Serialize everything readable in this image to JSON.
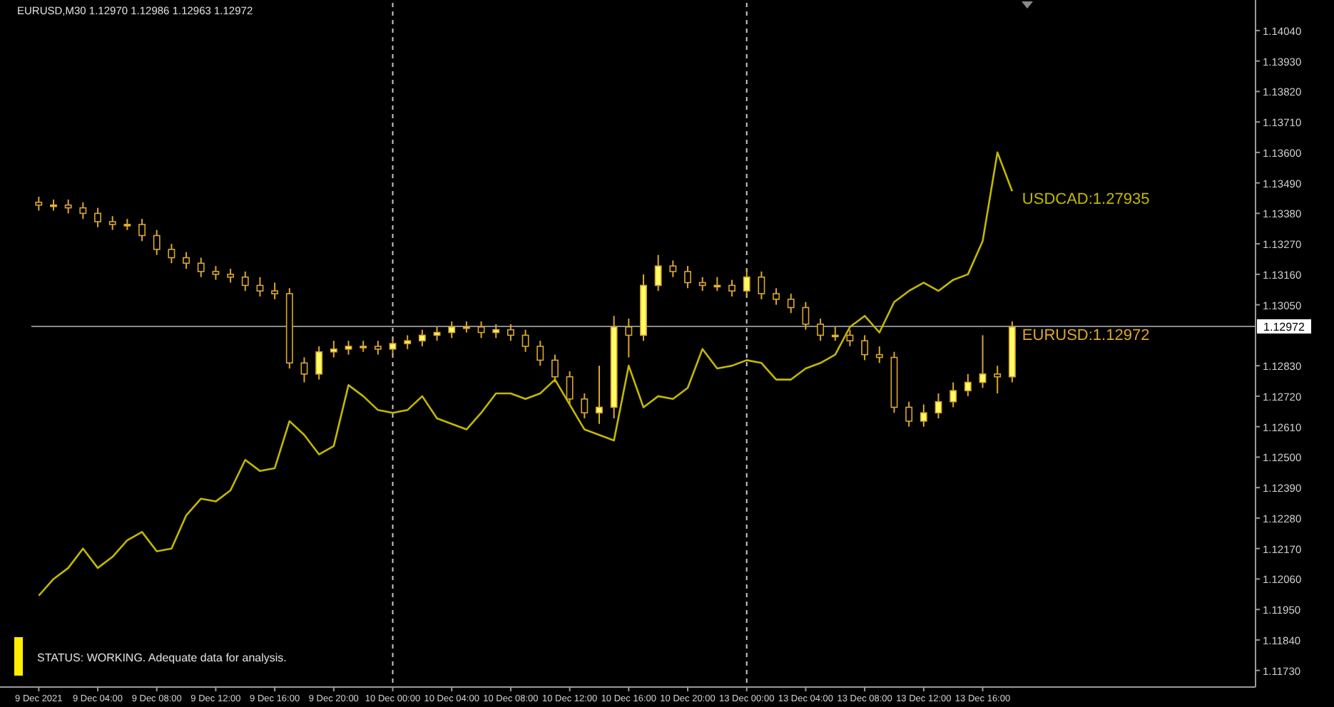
{
  "chart_data": {
    "type": "candlestick",
    "title": "EURUSD,M30  1.12970 1.12986 1.12963 1.12972",
    "annotations": [
      "STATUS: WORKING. Adequate data for analysis."
    ],
    "categories": [
      "9 Dec 2021",
      null,
      null,
      null,
      "9 Dec 04:00",
      null,
      null,
      null,
      "9 Dec 08:00",
      null,
      null,
      null,
      "9 Dec 12:00",
      null,
      null,
      null,
      "9 Dec 16:00",
      null,
      null,
      null,
      "9 Dec 20:00",
      null,
      null,
      null,
      "10 Dec 00:00",
      null,
      null,
      null,
      "10 Dec 04:00",
      null,
      null,
      null,
      "10 Dec 08:00",
      null,
      null,
      null,
      "10 Dec 12:00",
      null,
      null,
      null,
      "10 Dec 16:00",
      null,
      null,
      null,
      "10 Dec 20:00",
      null,
      null,
      null,
      "13 Dec 00:00",
      null,
      null,
      null,
      "13 Dec 04:00",
      null,
      null,
      null,
      "13 Dec 08:00",
      null,
      null,
      null,
      "13 Dec 12:00",
      null,
      null,
      null,
      "13 Dec 16:00",
      null,
      null
    ],
    "ylim": [
      1.1167,
      1.1414
    ],
    "yticks": [
      {
        "value": 1.1404,
        "label": "1.14040"
      },
      {
        "value": 1.1393,
        "label": "1.13930"
      },
      {
        "value": 1.1382,
        "label": "1.13820"
      },
      {
        "value": 1.1371,
        "label": "1.13710"
      },
      {
        "value": 1.136,
        "label": "1.13600"
      },
      {
        "value": 1.1349,
        "label": "1.13490"
      },
      {
        "value": 1.1338,
        "label": "1.13380"
      },
      {
        "value": 1.1327,
        "label": "1.13270"
      },
      {
        "value": 1.1316,
        "label": "1.13160"
      },
      {
        "value": 1.1305,
        "label": "1.13050"
      },
      {
        "value": 1.1283,
        "label": "1.12830"
      },
      {
        "value": 1.1272,
        "label": "1.12720"
      },
      {
        "value": 1.1261,
        "label": "1.12610"
      },
      {
        "value": 1.125,
        "label": "1.12500"
      },
      {
        "value": 1.1239,
        "label": "1.12390"
      },
      {
        "value": 1.1228,
        "label": "1.12280"
      },
      {
        "value": 1.1217,
        "label": "1.12170"
      },
      {
        "value": 1.1206,
        "label": "1.12060"
      },
      {
        "value": 1.1195,
        "label": "1.11950"
      },
      {
        "value": 1.1184,
        "label": "1.11840"
      },
      {
        "value": 1.1173,
        "label": "1.11730"
      }
    ],
    "grid": false,
    "ref_lines": [
      {
        "axis": "x",
        "value": "10 Dec 00:00",
        "label": null,
        "color": "#c8c8c8",
        "line_style": "dashed"
      },
      {
        "axis": "x",
        "value": "13 Dec 00:00",
        "label": null,
        "color": "#c8c8c8",
        "line_style": "dashed"
      },
      {
        "axis": "y",
        "value": 1.12972,
        "label": "1.12972",
        "color": "#8a8a8a",
        "line_style": "solid"
      }
    ],
    "series": [
      {
        "name": "EURUSD:1.12972",
        "color": "#d9a631",
        "ohlc": [
          [
            1.1342,
            1.1344,
            1.1339,
            1.1341
          ],
          [
            1.1341,
            1.1343,
            1.1339,
            1.1341
          ],
          [
            1.1341,
            1.1343,
            1.1338,
            1.134
          ],
          [
            1.134,
            1.1342,
            1.1336,
            1.1338
          ],
          [
            1.1338,
            1.134,
            1.1333,
            1.1335
          ],
          [
            1.1335,
            1.1337,
            1.1332,
            1.1334
          ],
          [
            1.1334,
            1.1336,
            1.1332,
            1.1334
          ],
          [
            1.1334,
            1.1336,
            1.1328,
            1.133
          ],
          [
            1.133,
            1.1332,
            1.1323,
            1.1325
          ],
          [
            1.1325,
            1.1327,
            1.132,
            1.1322
          ],
          [
            1.1322,
            1.1324,
            1.1318,
            1.132
          ],
          [
            1.132,
            1.1322,
            1.1315,
            1.1317
          ],
          [
            1.1317,
            1.1319,
            1.1314,
            1.1316
          ],
          [
            1.1316,
            1.1318,
            1.1313,
            1.1315
          ],
          [
            1.1315,
            1.1317,
            1.131,
            1.1312
          ],
          [
            1.1312,
            1.1315,
            1.1308,
            1.131
          ],
          [
            1.131,
            1.1313,
            1.1307,
            1.1309
          ],
          [
            1.1309,
            1.1311,
            1.1282,
            1.1284
          ],
          [
            1.1284,
            1.1286,
            1.1277,
            1.128
          ],
          [
            1.128,
            1.129,
            1.1278,
            1.1288
          ],
          [
            1.1288,
            1.1292,
            1.1286,
            1.1289
          ],
          [
            1.1289,
            1.1292,
            1.1287,
            1.129
          ],
          [
            1.129,
            1.1292,
            1.1288,
            1.129
          ],
          [
            1.129,
            1.1292,
            1.1287,
            1.1289
          ],
          [
            1.1289,
            1.1293,
            1.1287,
            1.1291
          ],
          [
            1.1291,
            1.1294,
            1.1289,
            1.1292
          ],
          [
            1.1292,
            1.1296,
            1.129,
            1.1294
          ],
          [
            1.1294,
            1.1297,
            1.1292,
            1.1295
          ],
          [
            1.1295,
            1.1299,
            1.1293,
            1.1297
          ],
          [
            1.1297,
            1.1299,
            1.1295,
            1.1297
          ],
          [
            1.1297,
            1.1299,
            1.1293,
            1.1295
          ],
          [
            1.1295,
            1.1298,
            1.1293,
            1.1296
          ],
          [
            1.1296,
            1.1298,
            1.1292,
            1.1294
          ],
          [
            1.1294,
            1.1296,
            1.1288,
            1.129
          ],
          [
            1.129,
            1.1292,
            1.1283,
            1.1285
          ],
          [
            1.1285,
            1.1287,
            1.1277,
            1.1279
          ],
          [
            1.1279,
            1.1281,
            1.1269,
            1.1271
          ],
          [
            1.1271,
            1.1273,
            1.1264,
            1.1266
          ],
          [
            1.1266,
            1.1283,
            1.1262,
            1.1268
          ],
          [
            1.1268,
            1.1301,
            1.1264,
            1.1297
          ],
          [
            1.1297,
            1.13,
            1.1286,
            1.1294
          ],
          [
            1.1294,
            1.1316,
            1.1292,
            1.1312
          ],
          [
            1.1312,
            1.1323,
            1.131,
            1.1319
          ],
          [
            1.1319,
            1.1321,
            1.1315,
            1.1317
          ],
          [
            1.1317,
            1.1319,
            1.1311,
            1.1313
          ],
          [
            1.1313,
            1.1315,
            1.131,
            1.1312
          ],
          [
            1.1312,
            1.1315,
            1.131,
            1.1312
          ],
          [
            1.1312,
            1.1314,
            1.1308,
            1.131
          ],
          [
            1.131,
            1.1318,
            1.1308,
            1.1315
          ],
          [
            1.1315,
            1.1317,
            1.1307,
            1.1309
          ],
          [
            1.1309,
            1.1311,
            1.1305,
            1.1307
          ],
          [
            1.1307,
            1.1309,
            1.1302,
            1.1304
          ],
          [
            1.1304,
            1.1306,
            1.1296,
            1.1298
          ],
          [
            1.1298,
            1.13,
            1.1292,
            1.1294
          ],
          [
            1.1294,
            1.1297,
            1.1292,
            1.1294
          ],
          [
            1.1294,
            1.1296,
            1.129,
            1.1292
          ],
          [
            1.1292,
            1.1294,
            1.1285,
            1.1287
          ],
          [
            1.1287,
            1.129,
            1.1284,
            1.1286
          ],
          [
            1.1286,
            1.1288,
            1.1266,
            1.1268
          ],
          [
            1.1268,
            1.127,
            1.1261,
            1.1263
          ],
          [
            1.1263,
            1.1269,
            1.1261,
            1.1266
          ],
          [
            1.1266,
            1.1273,
            1.1264,
            1.127
          ],
          [
            1.127,
            1.1277,
            1.1268,
            1.1274
          ],
          [
            1.1274,
            1.128,
            1.1272,
            1.1277
          ],
          [
            1.1277,
            1.1294,
            1.1275,
            1.128
          ],
          [
            1.128,
            1.1283,
            1.1273,
            1.1279
          ],
          [
            1.1279,
            1.1299,
            1.1277,
            1.1297
          ]
        ]
      },
      {
        "type": "line",
        "name": "USDCAD:1.27935",
        "color": "#c2b800",
        "values": [
          1.12,
          1.1206,
          1.121,
          1.1217,
          1.121,
          1.1214,
          1.122,
          1.1223,
          1.1216,
          1.1217,
          1.1229,
          1.1235,
          1.1234,
          1.1238,
          1.1249,
          1.1245,
          1.1246,
          1.1263,
          1.1258,
          1.1251,
          1.1254,
          1.1276,
          1.1272,
          1.1267,
          1.1266,
          1.1267,
          1.1272,
          1.1264,
          1.1262,
          1.126,
          1.1266,
          1.1273,
          1.1273,
          1.1271,
          1.1273,
          1.1278,
          1.1269,
          1.126,
          1.1258,
          1.1256,
          1.1283,
          1.1268,
          1.1272,
          1.1271,
          1.1275,
          1.1289,
          1.1282,
          1.1283,
          1.1285,
          1.1284,
          1.1278,
          1.1278,
          1.1282,
          1.1284,
          1.1287,
          1.1297,
          1.1301,
          1.1295,
          1.1306,
          1.131,
          1.1313,
          1.131,
          1.1314,
          1.1316,
          1.1328,
          1.136,
          1.1346
        ]
      }
    ]
  }
}
